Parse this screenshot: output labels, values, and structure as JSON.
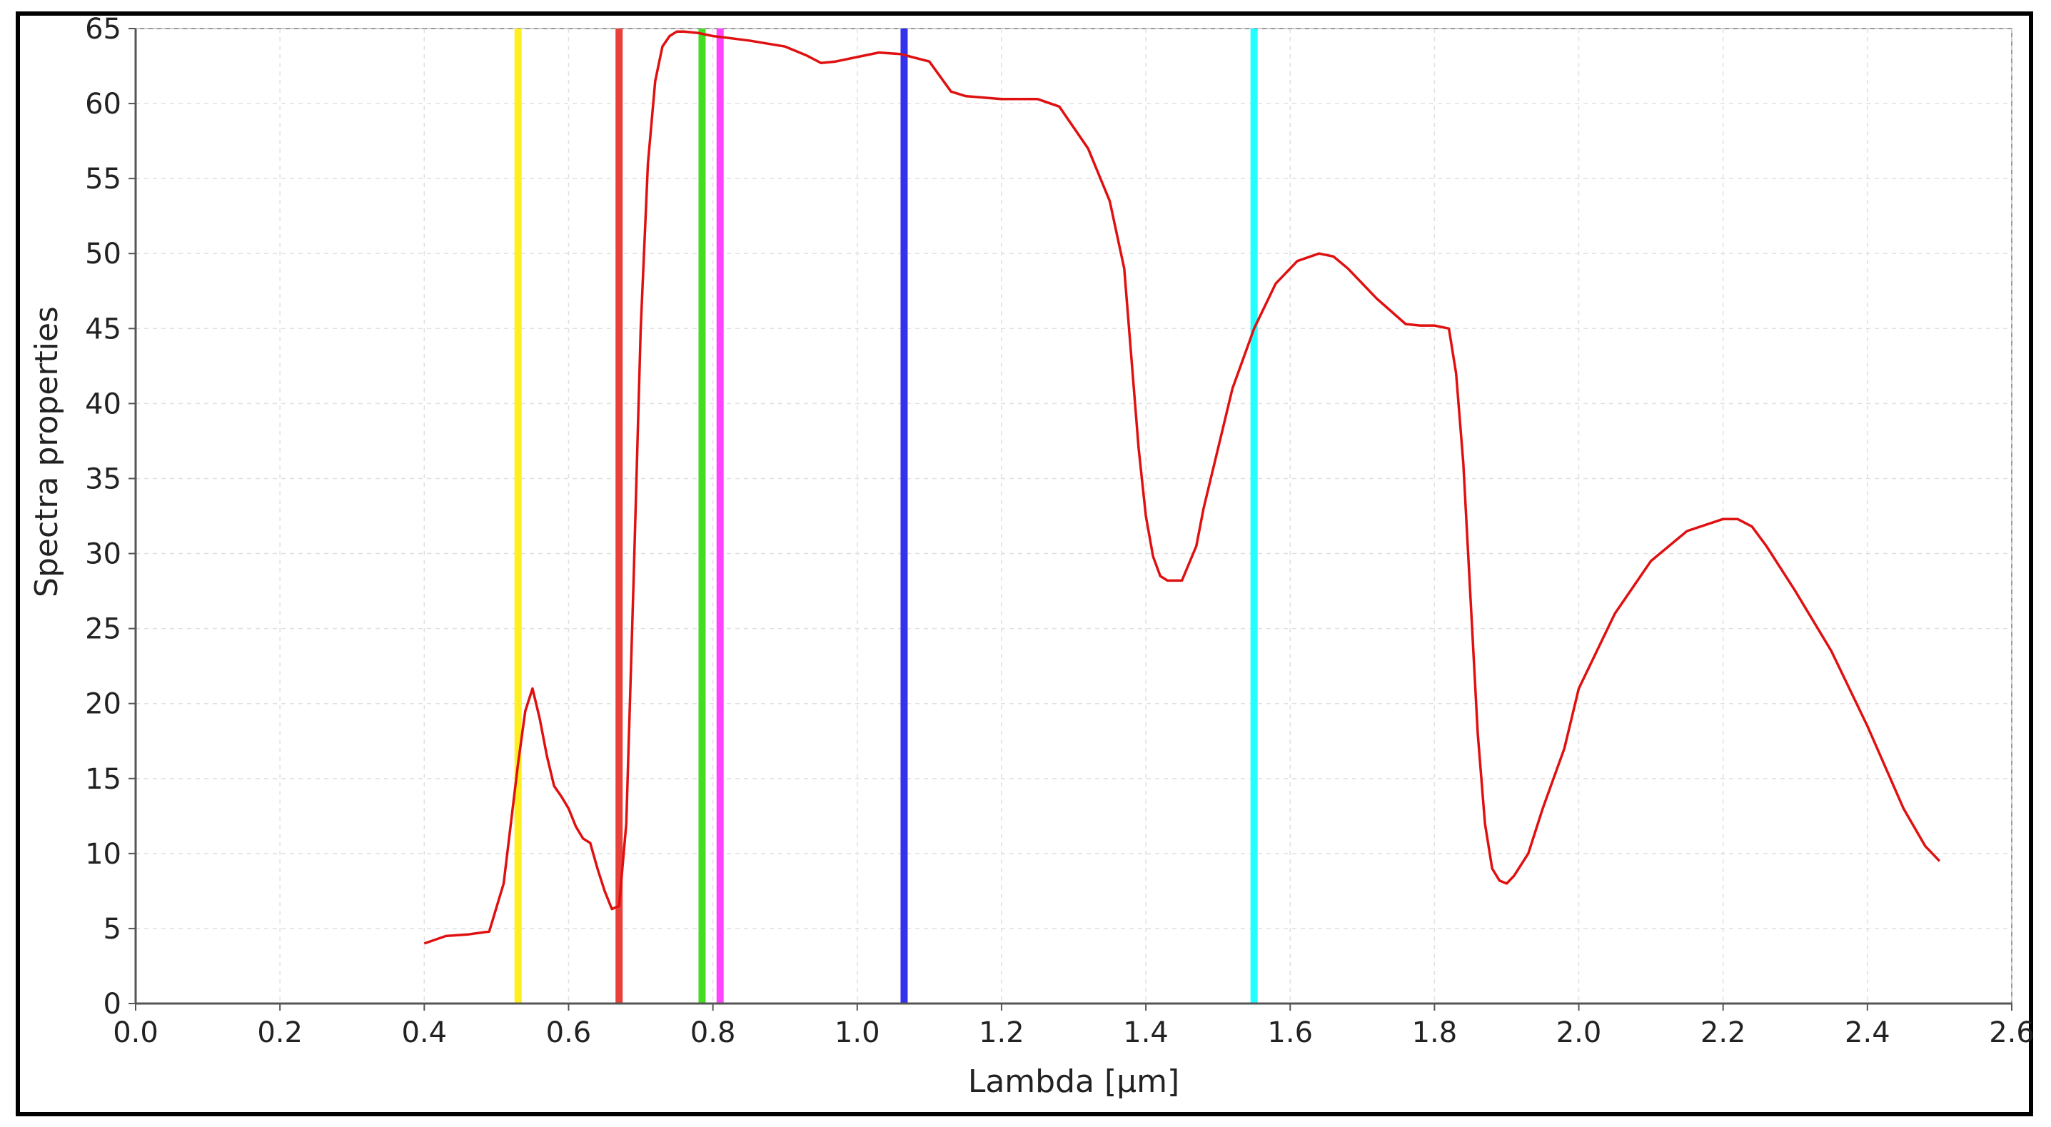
{
  "chart_data": {
    "type": "line",
    "title": "",
    "xlabel": "Lambda [µm]",
    "ylabel": "Spectra properties",
    "xlim": [
      0,
      2.6
    ],
    "ylim": [
      0,
      65
    ],
    "x_ticks": [
      0.0,
      0.2,
      0.4,
      0.6,
      0.8,
      1.0,
      1.2,
      1.4,
      1.6,
      1.8,
      2.0,
      2.2,
      2.4,
      2.6
    ],
    "x_tick_labels": [
      "0.0",
      "0.2",
      "0.4",
      "0.6",
      "0.8",
      "1.0",
      "1.2",
      "1.4",
      "1.6",
      "1.8",
      "2.0",
      "2.2",
      "2.4",
      "2.6"
    ],
    "y_ticks": [
      0,
      5,
      10,
      15,
      20,
      25,
      30,
      35,
      40,
      45,
      50,
      55,
      60,
      65
    ],
    "y_tick_labels": [
      "0",
      "5",
      "10",
      "15",
      "20",
      "25",
      "30",
      "35",
      "40",
      "45",
      "50",
      "55",
      "60",
      "65"
    ],
    "grid": true,
    "series": [
      {
        "color": "#e01010",
        "x": [
          0.4,
          0.43,
          0.46,
          0.49,
          0.51,
          0.52,
          0.53,
          0.54,
          0.55,
          0.56,
          0.57,
          0.58,
          0.59,
          0.6,
          0.61,
          0.62,
          0.63,
          0.64,
          0.65,
          0.66,
          0.67,
          0.68,
          0.69,
          0.7,
          0.71,
          0.72,
          0.73,
          0.74,
          0.75,
          0.76,
          0.78,
          0.8,
          0.85,
          0.9,
          0.93,
          0.95,
          0.97,
          1.0,
          1.03,
          1.06,
          1.1,
          1.13,
          1.15,
          1.2,
          1.25,
          1.28,
          1.32,
          1.35,
          1.37,
          1.38,
          1.39,
          1.4,
          1.41,
          1.42,
          1.43,
          1.45,
          1.47,
          1.48,
          1.5,
          1.52,
          1.55,
          1.58,
          1.61,
          1.64,
          1.66,
          1.68,
          1.72,
          1.76,
          1.78,
          1.8,
          1.82,
          1.83,
          1.84,
          1.85,
          1.86,
          1.87,
          1.88,
          1.89,
          1.9,
          1.91,
          1.93,
          1.95,
          1.98,
          2.0,
          2.05,
          2.1,
          2.15,
          2.2,
          2.22,
          2.24,
          2.26,
          2.3,
          2.35,
          2.4,
          2.45,
          2.48,
          2.5
        ],
        "y": [
          4.0,
          4.5,
          4.6,
          4.8,
          8.0,
          12.0,
          16.0,
          19.5,
          21.0,
          19.0,
          16.5,
          14.5,
          13.8,
          13.0,
          11.8,
          11.0,
          10.7,
          9.0,
          7.5,
          6.3,
          6.5,
          12.0,
          28.0,
          45.0,
          56.0,
          61.5,
          63.8,
          64.5,
          64.8,
          64.8,
          64.7,
          64.5,
          64.2,
          63.8,
          63.2,
          62.7,
          62.8,
          63.1,
          63.4,
          63.3,
          62.8,
          60.8,
          60.5,
          60.3,
          60.3,
          59.8,
          57.0,
          53.5,
          49.0,
          43.0,
          37.0,
          32.5,
          29.8,
          28.5,
          28.2,
          28.2,
          30.5,
          33.0,
          37.0,
          41.0,
          45.0,
          48.0,
          49.5,
          50.0,
          49.8,
          49.0,
          47.0,
          45.3,
          45.2,
          45.2,
          45.0,
          42.0,
          36.0,
          27.0,
          18.0,
          12.0,
          9.0,
          8.2,
          8.0,
          8.5,
          10.0,
          13.0,
          17.0,
          21.0,
          26.0,
          29.5,
          31.5,
          32.3,
          32.3,
          31.8,
          30.5,
          27.5,
          23.5,
          18.5,
          13.0,
          10.5,
          9.5
        ]
      }
    ],
    "vertical_lines": [
      {
        "x": 0.53,
        "color": "#ffee22"
      },
      {
        "x": 0.67,
        "color": "#e8413c"
      },
      {
        "x": 0.785,
        "color": "#44dd22"
      },
      {
        "x": 0.81,
        "color": "#ff44ff"
      },
      {
        "x": 1.065,
        "color": "#3333ee"
      },
      {
        "x": 1.55,
        "color": "#22ffff"
      }
    ]
  }
}
